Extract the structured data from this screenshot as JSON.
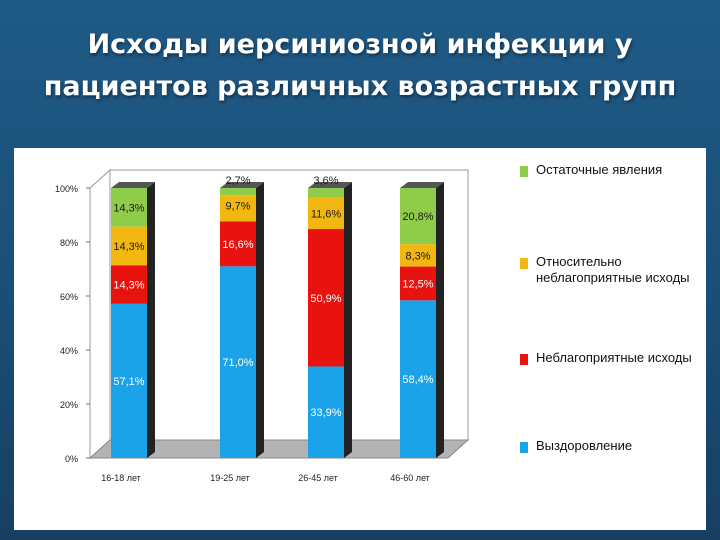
{
  "slide": {
    "title_lines": [
      "Исходы иерсиниозной инфекции у",
      "пациентов различных возрастных групп"
    ]
  },
  "chart_data": {
    "type": "bar",
    "stacked": true,
    "percent": true,
    "categories": [
      "16-18 лет",
      "19-25 лет",
      "26-45 лет",
      "46-60 лет"
    ],
    "ylim": [
      0,
      100
    ],
    "yticks": [
      "0%",
      "20%",
      "40%",
      "60%",
      "80%",
      "100%"
    ],
    "series": [
      {
        "name": "Выздоровление",
        "color": "#1aa3e8",
        "values": [
          57.1,
          71.0,
          33.9,
          58.4
        ],
        "labels": [
          "57,1%",
          "71,0%",
          "33,9%",
          "58,4%"
        ]
      },
      {
        "name": "Неблагоприятные исходы",
        "color": "#e8120e",
        "values": [
          14.3,
          16.6,
          50.9,
          12.5
        ],
        "labels": [
          "14,3%",
          "16,6%",
          "50,9%",
          "12,5%"
        ]
      },
      {
        "name": "Относительно неблагоприятные исходы",
        "color": "#f2b710",
        "values": [
          14.3,
          9.7,
          11.6,
          8.3
        ],
        "labels": [
          "14,3%",
          "9,7%",
          "11,6%",
          "8,3%"
        ]
      },
      {
        "name": "Остаточные явления",
        "color": "#8fcc4a",
        "values": [
          14.3,
          2.7,
          3.6,
          20.8
        ],
        "labels": [
          "14,3%",
          "2,7%",
          "3,6%",
          "20,8%"
        ]
      }
    ],
    "legend_order": [
      3,
      2,
      1,
      0
    ],
    "legend_position": "right"
  }
}
